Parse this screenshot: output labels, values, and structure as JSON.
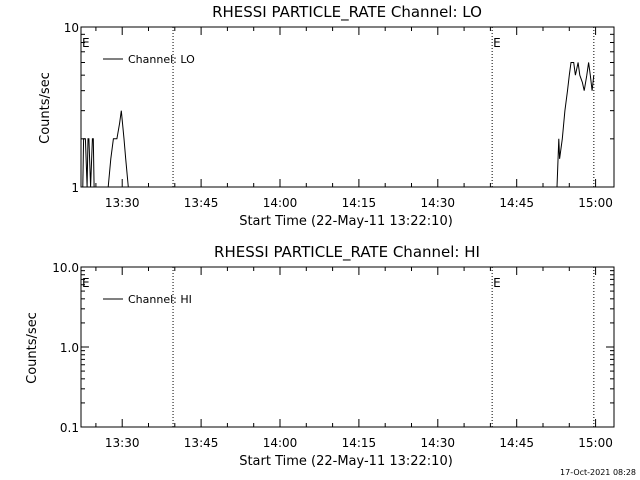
{
  "footer": {
    "timestamp": "17-Oct-2021 08:28"
  },
  "chart_data": [
    {
      "type": "line",
      "title": "RHESSI PARTICLE_RATE Channel: LO",
      "xlabel": "Start Time (22-May-11 13:22:10)",
      "ylabel": "Counts/sec",
      "yscale": "log",
      "ylim": [
        1,
        10
      ],
      "y_ticks": [
        "1",
        "10"
      ],
      "xlim": [
        "13:22:10",
        "15:03:30"
      ],
      "x_ticks": [
        "13:30",
        "13:45",
        "14:00",
        "14:15",
        "14:30",
        "14:45",
        "15:00"
      ],
      "x_tick_times": [
        "13:30",
        "13:45",
        "14:00",
        "14:15",
        "14:30",
        "14:45",
        "15:00"
      ],
      "legend": {
        "position": "top-left",
        "entries": [
          "Channel: LO"
        ]
      },
      "markers": [
        {
          "time": "13:22:10",
          "label": "E"
        },
        {
          "time": "14:40:20",
          "label": "E"
        }
      ],
      "vlines": [
        "13:39:40",
        "14:40:20",
        "14:59:40"
      ],
      "series": [
        {
          "name": "Channel: LO",
          "x": [
            "13:22:30",
            "13:22:40",
            "13:23:00",
            "13:23:20",
            "13:23:30",
            "13:23:40",
            "13:24:00",
            "13:24:20",
            "13:24:30",
            "13:24:40",
            "13:25:00",
            "13:26:30",
            "13:27:20",
            "13:27:50",
            "13:28:20",
            "13:28:40",
            "13:29:00",
            "13:29:30",
            "13:29:50",
            "13:30:20",
            "13:30:40",
            "13:31:10",
            "13:31:40",
            "13:32:10",
            "14:52:40",
            "14:53:00",
            "14:53:10",
            "14:53:40",
            "14:54:10",
            "14:54:40",
            "14:55:00",
            "14:55:20",
            "14:55:50",
            "14:56:10",
            "14:56:40",
            "14:57:00",
            "14:57:30",
            "14:57:50",
            "14:58:20",
            "14:58:40",
            "14:59:00",
            "14:59:20",
            "14:59:40"
          ],
          "y": [
            1,
            2,
            2,
            1,
            2,
            2,
            1,
            2,
            2,
            1,
            1,
            1,
            1,
            1.5,
            2,
            2,
            2,
            2.5,
            3,
            2,
            1.5,
            1,
            1,
            1,
            1,
            2,
            1.5,
            2,
            3,
            4,
            5,
            6,
            6,
            5,
            6,
            5,
            4.5,
            4,
            5,
            6,
            5,
            4,
            5
          ]
        }
      ]
    },
    {
      "type": "line",
      "title": "RHESSI PARTICLE_RATE Channel: HI",
      "xlabel": "Start Time (22-May-11 13:22:10)",
      "ylabel": "Counts/sec",
      "yscale": "log",
      "ylim": [
        0.1,
        10
      ],
      "y_ticks": [
        "0.1",
        "1.0",
        "10.0"
      ],
      "xlim": [
        "13:22:10",
        "15:03:30"
      ],
      "x_ticks": [
        "13:30",
        "13:45",
        "14:00",
        "14:15",
        "14:30",
        "14:45",
        "15:00"
      ],
      "x_tick_times": [
        "13:30",
        "13:45",
        "14:00",
        "14:15",
        "14:30",
        "14:45",
        "15:00"
      ],
      "legend": {
        "position": "top-left",
        "entries": [
          "Channel: HI"
        ]
      },
      "markers": [
        {
          "time": "13:22:10",
          "label": "E"
        },
        {
          "time": "14:40:20",
          "label": "E"
        }
      ],
      "vlines": [
        "13:39:40",
        "14:40:20",
        "14:59:40"
      ],
      "series": [
        {
          "name": "Channel: HI",
          "x": [],
          "y": []
        }
      ]
    }
  ]
}
